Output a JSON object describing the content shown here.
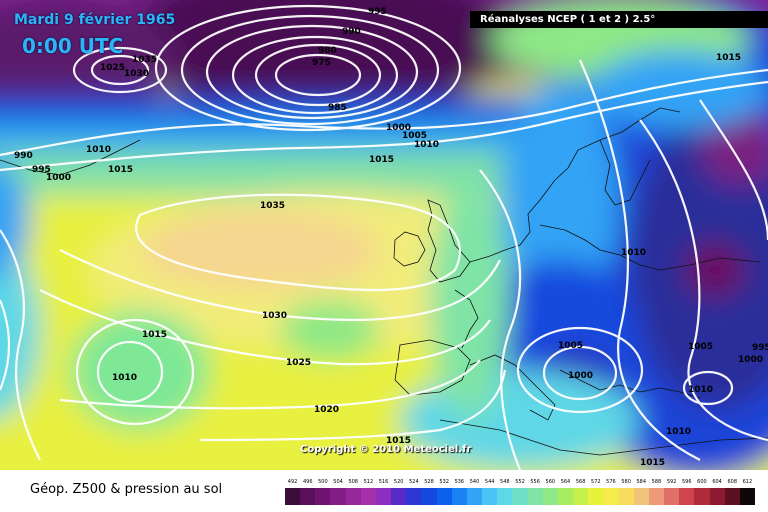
{
  "map": {
    "date_title": "Mardi 9 février 1965",
    "time_title": "0:00 UTC",
    "source": "Réanalyses NCEP ( 1 et 2 ) 2.5°",
    "copyright": "Copyright © 2010 Meteociel.fr",
    "footer_label": "Géop. Z500 & pression au sol",
    "isobar_labels": [
      "995",
      "990",
      "1035",
      "1025",
      "1030",
      "980",
      "975",
      "985",
      "1000",
      "1005",
      "1010",
      "1015",
      "990",
      "1010",
      "995",
      "1000",
      "1015",
      "1035",
      "1010",
      "1030",
      "1015",
      "1010",
      "1025",
      "1020",
      "1015",
      "1005",
      "1000",
      "1005",
      "1000",
      "1010",
      "1010",
      "1015",
      "1015",
      "995"
    ],
    "legend": {
      "values": [
        "492",
        "496",
        "500",
        "504",
        "508",
        "512",
        "516",
        "520",
        "524",
        "528",
        "532",
        "536",
        "540",
        "544",
        "548",
        "552",
        "556",
        "560",
        "564",
        "568",
        "572",
        "576",
        "580",
        "584",
        "588",
        "592",
        "596",
        "600",
        "604",
        "608",
        "612"
      ],
      "colors": [
        "#3a0d3a",
        "#5a0f5a",
        "#6e1470",
        "#821d86",
        "#95289a",
        "#a62fab",
        "#8c2fc0",
        "#5a2ac8",
        "#2c36d2",
        "#1548de",
        "#0c60ea",
        "#1a82f2",
        "#33a3f5",
        "#4bc3f4",
        "#5ed7e6",
        "#6fe0c8",
        "#7fe4a6",
        "#8ee886",
        "#a8ec62",
        "#c6f04a",
        "#e6f33a",
        "#f4ec4a",
        "#f7dc5e",
        "#f0c47a",
        "#ee9a78",
        "#e07068",
        "#d0444e",
        "#b02a3a",
        "#8c1a30",
        "#5c1020",
        "#100808"
      ]
    }
  }
}
